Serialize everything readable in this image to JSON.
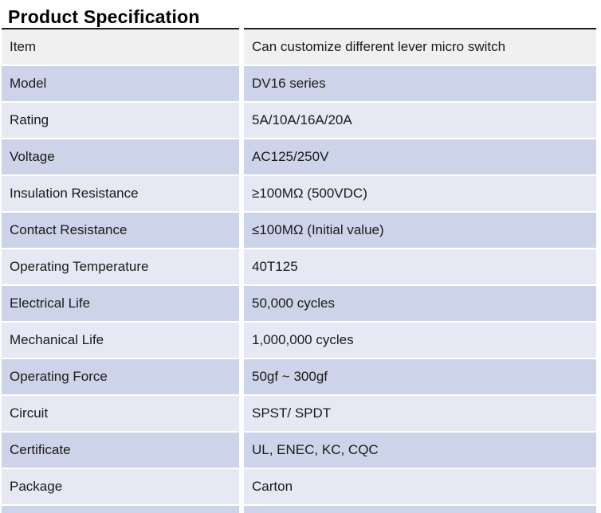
{
  "title": "Product Specification",
  "colors": {
    "row_gray": "#f0f0f0",
    "row_dark": "#cdd3e8",
    "row_light": "#e6e8f4",
    "rule": "#1f1f1f",
    "text": "#1a1a1a"
  },
  "table": {
    "rows": [
      {
        "label": "Item",
        "value": "Can customize different lever micro switch"
      },
      {
        "label": "Model",
        "value": "DV16 series"
      },
      {
        "label": "Rating",
        "value": "5A/10A/16A/20A"
      },
      {
        "label": "Voltage",
        "value": "AC125/250V"
      },
      {
        "label": "Insulation Resistance",
        "value": "≥100MΩ (500VDC)"
      },
      {
        "label": "Contact Resistance",
        "value": "≤100MΩ (Initial value)"
      },
      {
        "label": "Operating Temperature",
        "value": "40T125"
      },
      {
        "label": "Electrical Life",
        "value": "50,000 cycles"
      },
      {
        "label": "Mechanical Life",
        "value": "1,000,000 cycles"
      },
      {
        "label": "Operating Force",
        "value": "50gf ~ 300gf"
      },
      {
        "label": "Circuit",
        "value": "SPST/ SPDT"
      },
      {
        "label": "Certificate",
        "value": "UL, ENEC, KC, CQC"
      },
      {
        "label": "Package",
        "value": "Carton"
      }
    ]
  }
}
